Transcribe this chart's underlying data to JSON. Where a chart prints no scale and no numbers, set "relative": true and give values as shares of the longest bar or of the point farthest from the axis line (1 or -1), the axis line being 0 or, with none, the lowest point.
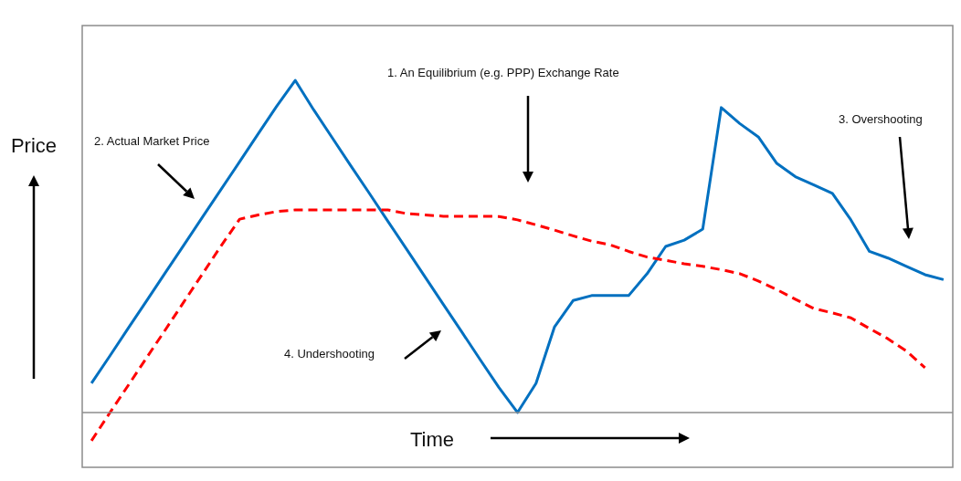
{
  "chart_data": {
    "type": "line",
    "relative": true,
    "xlabel": "Time",
    "ylabel": "Price",
    "categories": [
      null,
      null,
      null,
      null,
      null,
      null,
      null,
      null,
      null,
      null,
      null,
      null,
      null,
      null,
      null,
      null,
      null,
      null,
      null,
      null,
      null,
      null,
      null,
      null,
      null,
      null,
      null,
      null,
      null,
      null,
      null,
      null,
      null,
      null,
      null,
      null,
      null,
      null,
      null,
      null,
      null,
      null,
      null,
      null,
      null,
      null,
      null
    ],
    "series": [
      {
        "color": "#0070c0",
        "line_style": "solid",
        "values": [
          0.088,
          0.171,
          0.255,
          0.338,
          0.422,
          0.505,
          0.589,
          0.672,
          0.755,
          0.839,
          0.922,
          1,
          0.911,
          0.827,
          0.743,
          0.66,
          0.576,
          0.493,
          0.409,
          0.325,
          0.242,
          0.158,
          0.075,
          0,
          0.088,
          0.258,
          0.337,
          0.352,
          0.352,
          0.352,
          0.418,
          0.5,
          0.519,
          0.552,
          0.918,
          0.87,
          0.83,
          0.75,
          0.71,
          0.685,
          0.66,
          0.58,
          0.485,
          0.465,
          0.44,
          0.415,
          0.4
        ]
      },
      {
        "color": "#ff0000",
        "line_style": "dashed",
        "values": [
          -0.085,
          0,
          0.083,
          0.167,
          0.25,
          0.334,
          0.418,
          0.502,
          0.582,
          0.595,
          0.605,
          0.61,
          0.61,
          0.61,
          0.61,
          0.61,
          0.61,
          0.599,
          0.595,
          0.591,
          0.591,
          0.591,
          0.59,
          0.58,
          0.565,
          0.549,
          0.532,
          0.516,
          0.505,
          0.485,
          0.468,
          0.458,
          0.448,
          0.44,
          0.43,
          0.418,
          0.396,
          0.37,
          0.341,
          0.313,
          0.3,
          0.285,
          0.253,
          0.222,
          0.185,
          0.135,
          null
        ]
      }
    ],
    "annotations": [
      "1. An Equilibrium (e.g. PPP) Exchange Rate",
      "2. Actual Market Price",
      "3. Overshooting",
      "4. Undershooting"
    ]
  }
}
